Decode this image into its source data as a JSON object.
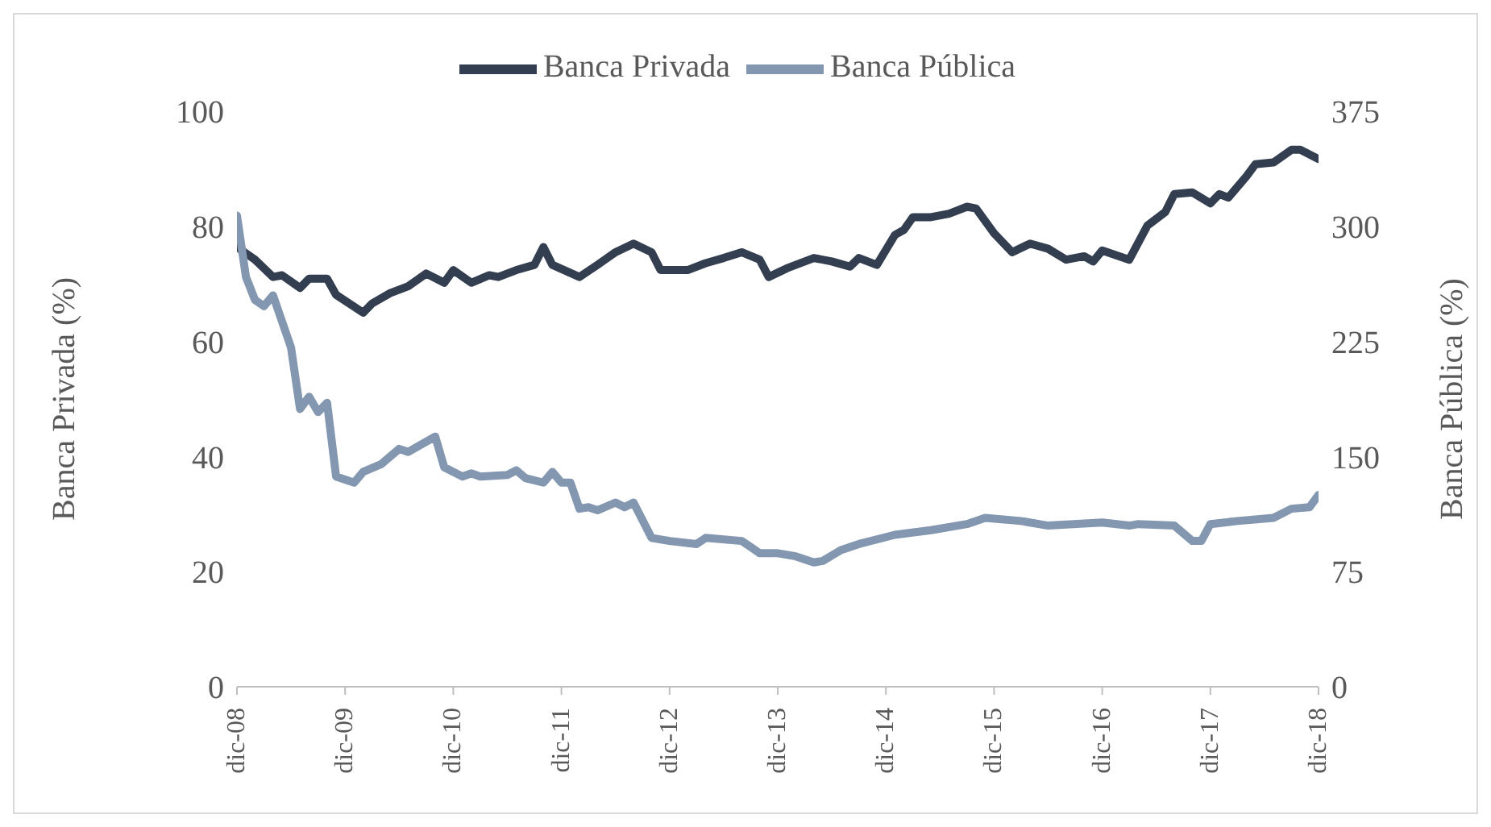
{
  "chart_data": {
    "type": "line",
    "legend": "top",
    "ylabel": "Banca Privada (%)",
    "y2label": "Banca Pública (%)",
    "xlim": [
      "2008-12",
      "2018-12"
    ],
    "xticks": [
      {
        "value": "2008-12",
        "label": "dic-08"
      },
      {
        "value": "2009-12",
        "label": "dic-09"
      },
      {
        "value": "2010-12",
        "label": "dic-10"
      },
      {
        "value": "2011-12",
        "label": "dic-11"
      },
      {
        "value": "2012-12",
        "label": "dic-12"
      },
      {
        "value": "2013-12",
        "label": "dic-13"
      },
      {
        "value": "2014-12",
        "label": "dic-14"
      },
      {
        "value": "2015-12",
        "label": "dic-15"
      },
      {
        "value": "2016-12",
        "label": "dic-16"
      },
      {
        "value": "2017-12",
        "label": "dic-17"
      },
      {
        "value": "2018-12",
        "label": "dic-18"
      }
    ],
    "ylim": [
      0,
      100
    ],
    "yticks": [
      0,
      20,
      40,
      60,
      80,
      100
    ],
    "y2lim": [
      0,
      375
    ],
    "y2ticks": [
      0,
      75,
      150,
      225,
      300,
      375
    ],
    "series": [
      {
        "name": "Banca Privada",
        "color": "#333f50",
        "x": [
          "2008-12",
          "2009-02",
          "2009-04",
          "2009-05",
          "2009-07",
          "2009-08",
          "2009-10",
          "2009-11",
          "2010-02",
          "2010-03",
          "2010-05",
          "2010-07",
          "2010-09",
          "2010-11",
          "2010-12",
          "2011-02",
          "2011-04",
          "2011-05",
          "2011-07",
          "2011-09",
          "2011-10",
          "2011-11",
          "2012-02",
          "2012-04",
          "2012-06",
          "2012-08",
          "2012-10",
          "2012-11",
          "2013-02",
          "2013-04",
          "2013-06",
          "2013-08",
          "2013-10",
          "2013-11",
          "2014-01",
          "2014-02",
          "2014-04",
          "2014-06",
          "2014-08",
          "2014-09",
          "2014-11",
          "2015-01",
          "2015-02",
          "2015-03",
          "2015-05",
          "2015-07",
          "2015-09",
          "2015-10",
          "2015-12",
          "2016-02",
          "2016-04",
          "2016-06",
          "2016-08",
          "2016-10",
          "2016-11",
          "2016-12",
          "2017-03",
          "2017-05",
          "2017-07",
          "2017-08",
          "2017-10",
          "2017-12",
          "2018-01",
          "2018-02",
          "2018-04",
          "2018-05",
          "2018-07",
          "2018-09",
          "2018-10",
          "2018-12"
        ],
        "values": [
          76.4,
          74.2,
          71.2,
          71.5,
          69.3,
          70.9,
          70.9,
          68.1,
          65,
          66.6,
          68.4,
          69.6,
          71.8,
          70.2,
          72.4,
          70.2,
          71.5,
          71.2,
          72.4,
          73.3,
          76.4,
          73.3,
          71.2,
          73.3,
          75.5,
          77,
          75.5,
          72.4,
          72.4,
          73.6,
          74.5,
          75.5,
          74.2,
          71.2,
          72.7,
          73.3,
          74.5,
          73.9,
          73,
          74.5,
          73.3,
          78.5,
          79.4,
          81.6,
          81.6,
          82.2,
          83.4,
          83.1,
          78.8,
          75.5,
          77,
          76.1,
          74.2,
          74.8,
          73.9,
          75.8,
          74.2,
          80.1,
          82.5,
          85.6,
          85.9,
          84,
          85.6,
          85,
          88.7,
          90.8,
          91.1,
          93.3,
          93.3,
          91.7
        ]
      },
      {
        "name": "Banca Pública",
        "color": "#8497b0",
        "axis": "y2",
        "x": [
          "2008-12",
          "2009-01",
          "2009-02",
          "2009-03",
          "2009-04",
          "2009-06",
          "2009-07",
          "2009-08",
          "2009-09",
          "2009-10",
          "2009-11",
          "2010-01",
          "2010-02",
          "2010-04",
          "2010-06",
          "2010-07",
          "2010-10",
          "2010-11",
          "2011-01",
          "2011-02",
          "2011-03",
          "2011-06",
          "2011-07",
          "2011-08",
          "2011-10",
          "2011-11",
          "2011-12",
          "2012-01",
          "2012-02",
          "2012-03",
          "2012-04",
          "2012-06",
          "2012-07",
          "2012-08",
          "2012-10",
          "2012-12",
          "2013-03",
          "2013-04",
          "2013-08",
          "2013-09",
          "2013-10",
          "2013-12",
          "2014-02",
          "2014-04",
          "2014-05",
          "2014-07",
          "2014-09",
          "2015-01",
          "2015-05",
          "2015-09",
          "2015-11",
          "2016-03",
          "2016-06",
          "2016-12",
          "2017-03",
          "2017-04",
          "2017-08",
          "2017-10",
          "2017-11",
          "2017-12",
          "2018-03",
          "2018-07",
          "2018-09",
          "2018-11",
          "2018-12"
        ],
        "values": [
          307,
          267,
          252,
          248,
          255,
          221,
          181,
          189,
          179,
          185,
          137,
          133,
          140,
          145,
          155,
          153,
          163,
          143,
          137,
          139,
          137,
          138,
          141,
          136,
          133,
          140,
          133,
          133,
          116,
          117,
          115,
          120,
          117,
          120,
          97,
          95,
          93,
          97,
          95,
          91,
          87,
          87,
          85,
          81,
          82,
          89,
          93,
          99,
          102,
          106,
          110,
          108,
          105,
          107,
          105,
          106,
          105,
          95,
          95,
          106,
          108,
          110,
          116,
          117,
          125
        ]
      }
    ]
  }
}
